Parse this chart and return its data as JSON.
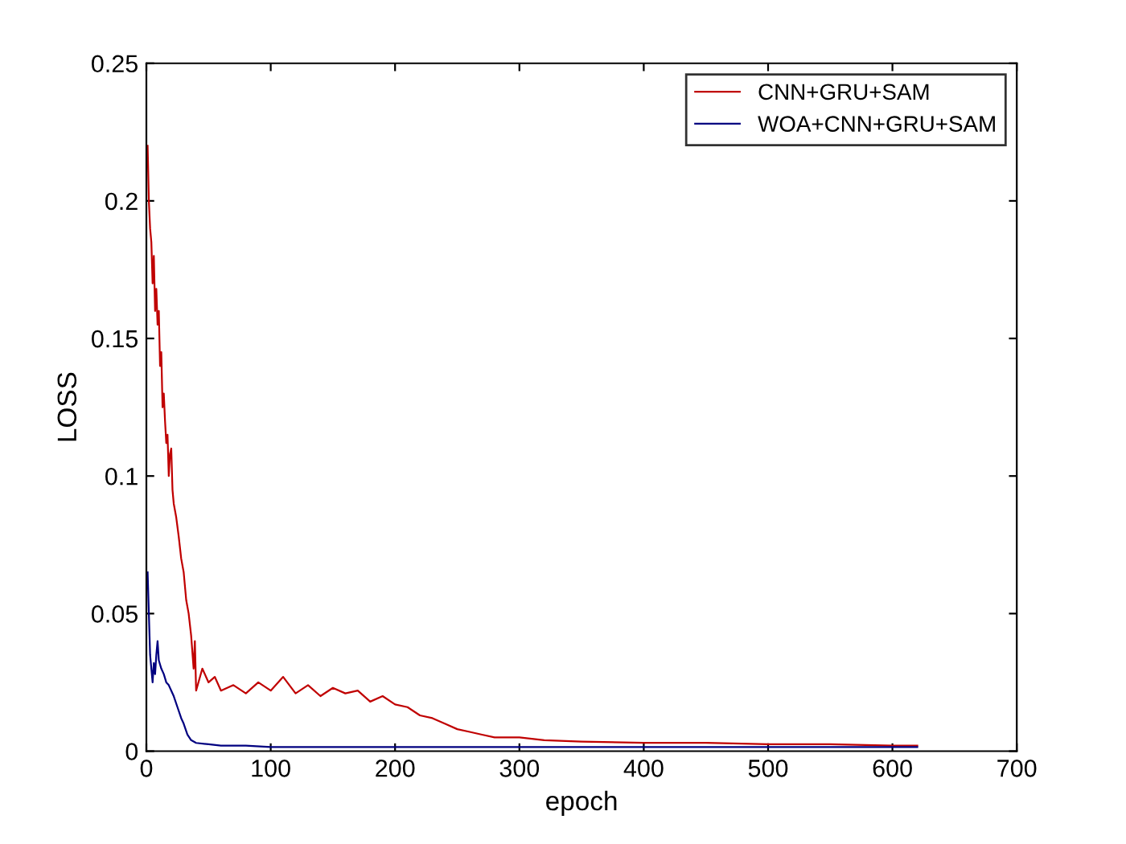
{
  "chart_data": {
    "type": "line",
    "xlabel": "epoch",
    "ylabel": "LOSS",
    "xlim": [
      0,
      700
    ],
    "xticks": [
      0,
      100,
      200,
      300,
      400,
      500,
      600,
      700
    ],
    "ylim": [
      0,
      0.25
    ],
    "yticks": [
      0,
      0.05,
      0.1,
      0.15,
      0.2,
      0.25
    ],
    "grid": false,
    "legend": "top right",
    "marker": "none",
    "line_style": "solid",
    "series": [
      {
        "name": "CNN+GRU+SAM",
        "color": "#c00000",
        "x": [
          1,
          2,
          3,
          4,
          5,
          6,
          7,
          8,
          9,
          10,
          11,
          12,
          13,
          14,
          15,
          16,
          17,
          18,
          19,
          20,
          21,
          22,
          24,
          26,
          28,
          30,
          32,
          34,
          36,
          38,
          39,
          40,
          45,
          50,
          55,
          60,
          70,
          80,
          90,
          100,
          110,
          120,
          130,
          140,
          150,
          160,
          170,
          180,
          190,
          200,
          210,
          220,
          230,
          240,
          250,
          260,
          270,
          280,
          300,
          320,
          350,
          400,
          450,
          500,
          550,
          600,
          620
        ],
        "values": [
          0.22,
          0.2,
          0.19,
          0.185,
          0.17,
          0.18,
          0.16,
          0.168,
          0.155,
          0.16,
          0.14,
          0.145,
          0.125,
          0.13,
          0.12,
          0.112,
          0.115,
          0.1,
          0.108,
          0.11,
          0.095,
          0.09,
          0.085,
          0.078,
          0.07,
          0.065,
          0.055,
          0.05,
          0.042,
          0.03,
          0.04,
          0.022,
          0.03,
          0.025,
          0.027,
          0.022,
          0.024,
          0.021,
          0.025,
          0.022,
          0.027,
          0.021,
          0.024,
          0.02,
          0.023,
          0.021,
          0.022,
          0.018,
          0.02,
          0.017,
          0.016,
          0.013,
          0.012,
          0.01,
          0.008,
          0.007,
          0.006,
          0.005,
          0.005,
          0.004,
          0.0035,
          0.003,
          0.003,
          0.0025,
          0.0025,
          0.002,
          0.002
        ]
      },
      {
        "name": "WOA+CNN+GRU+SAM",
        "color": "#000080",
        "x": [
          1,
          2,
          3,
          4,
          5,
          6,
          7,
          8,
          9,
          10,
          12,
          14,
          16,
          18,
          20,
          22,
          25,
          28,
          30,
          33,
          36,
          40,
          50,
          60,
          80,
          100,
          150,
          200,
          300,
          400,
          500,
          620
        ],
        "values": [
          0.065,
          0.05,
          0.035,
          0.03,
          0.025,
          0.032,
          0.028,
          0.035,
          0.04,
          0.033,
          0.03,
          0.028,
          0.025,
          0.024,
          0.022,
          0.02,
          0.016,
          0.012,
          0.01,
          0.006,
          0.004,
          0.003,
          0.0025,
          0.002,
          0.002,
          0.0015,
          0.0015,
          0.0015,
          0.0015,
          0.0015,
          0.0015,
          0.0015
        ]
      }
    ]
  }
}
